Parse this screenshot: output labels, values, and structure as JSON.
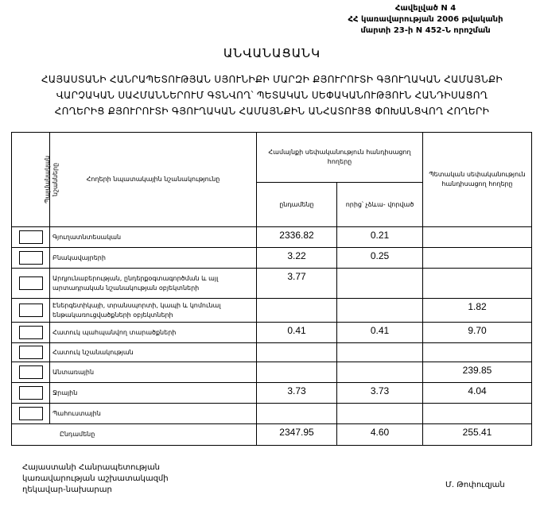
{
  "annex": [
    "Հավելված N 4",
    "ՀՀ կառավարության 2006 թվականի",
    "մարտի 23-ի N 452-Ն որոշման"
  ],
  "title": "ԱՆՎԱՆԱՑԱՆԿ",
  "subtitle": [
    "ՀԱՅԱՍՏԱՆԻ ՀԱՆՐԱՊԵՏՈՒԹՅԱՆ ՍՅՈՒՆԻՔԻ ՄԱՐԶԻ ՔՅՈՒՐՈՒՏԻ ԳՅՈՒՂԱԿԱՆ ՀԱՄԱՅՆՔԻ",
    "ՎԱՐՉԱԿԱՆ ՍԱՀՄԱՆՆԵՐՈՒՄ ԳՏՆՎՈՂ՝ ՊԵՏԱԿԱՆ ՍԵՓԱԿԱՆՈՒԹՅՈՒՆ ՀԱՆԴԻՍԱՑՈՂ",
    "ՀՈՂԵՐԻՑ ՔՅՈՒՐՈՒՏԻ ԳՅՈՒՂԱԿԱՆ ՀԱՄԱՅՆՔԻՆ ԱՆՀԱՏՈՒՅՑ ՓՈԽԱՆՑՎՈՂ ՀՈՂԵՐԻ"
  ],
  "table": {
    "headers": {
      "symbols": "Պայմանական նշանները",
      "purpose": "Հողերի նպատակային նշանակությունը",
      "community": "Համայնքի սեփականություն հանդիսացող հողերը",
      "total": "ընդամենը",
      "unformed": "որից՝ չձևա- վորված",
      "state": "Պետական սեփականություն հանդիսացող հողերը"
    },
    "rows": [
      {
        "label": "Գյուղատնտեսական",
        "total": "2336.82",
        "unformed": "0.21",
        "state": ""
      },
      {
        "label": "Բնակավայրերի",
        "total": "3.22",
        "unformed": "0.25",
        "state": ""
      },
      {
        "label": "Արդյունաբերության, ընդերքօգտագործման և այլ արտադրական նշանակության օբյեկտների",
        "total": "3.77",
        "unformed": "",
        "state": ""
      },
      {
        "label": "Էներգետիկայի, տրանսպորտի, կապի և կոմունալ ենթակառուցվածքների օբյեկտների",
        "total": "",
        "unformed": "",
        "state": "1.82"
      },
      {
        "label": "Հատուկ պահպանվող տարածքների",
        "total": "0.41",
        "unformed": "0.41",
        "state": "9.70"
      },
      {
        "label": "Հատուկ նշանակության",
        "total": "",
        "unformed": "",
        "state": ""
      },
      {
        "label": "Անտառային",
        "total": "",
        "unformed": "",
        "state": "239.85"
      },
      {
        "label": "Ջրային",
        "total": "3.73",
        "unformed": "3.73",
        "state": "4.04"
      },
      {
        "label": "Պահուստային",
        "total": "",
        "unformed": "",
        "state": ""
      }
    ],
    "totals": {
      "label": "Ընդամենը",
      "total": "2347.95",
      "unformed": "4.60",
      "state": "255.41"
    }
  },
  "footer": {
    "position": [
      "Հայաստանի Հանրապետության",
      "կառավարության աշխատակազմի",
      "ղեկավար-նախարար"
    ],
    "name": "Մ. Թոփուզյան"
  }
}
